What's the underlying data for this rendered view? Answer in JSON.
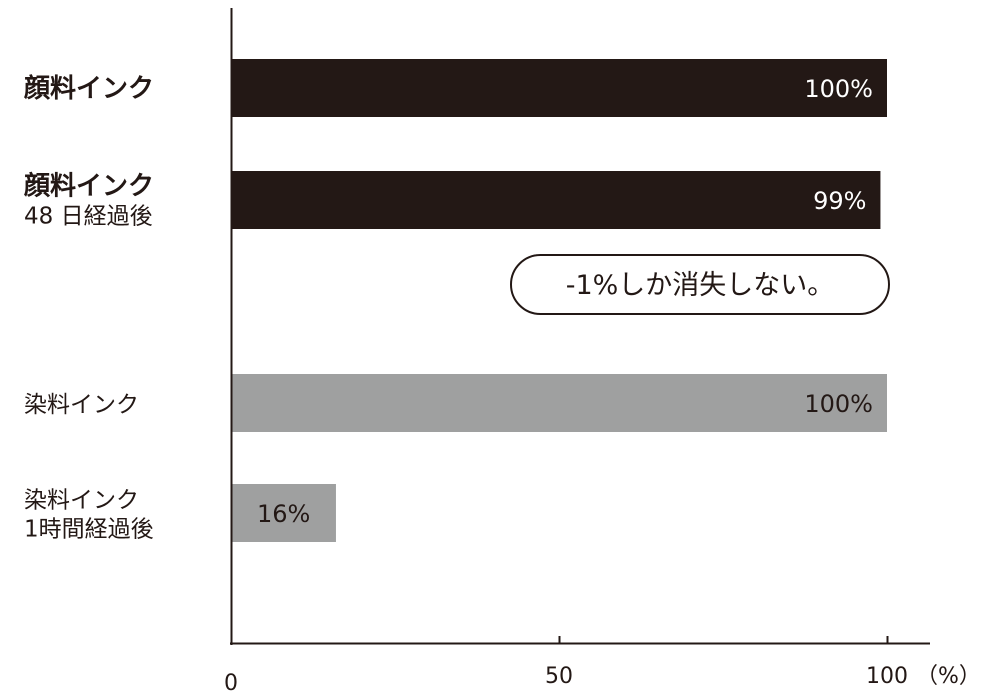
{
  "chart_data": {
    "type": "bar",
    "orientation": "horizontal",
    "categories": [
      [
        "顔料インク"
      ],
      [
        "顔料インク",
        "48 日経過後"
      ],
      [
        "染料インク"
      ],
      [
        "染料インク",
        "1時間経過後"
      ]
    ],
    "category_bold_first_line": [
      true,
      true,
      false,
      false
    ],
    "values": [
      100,
      99,
      100,
      16
    ],
    "value_labels": [
      "100%",
      "99%",
      "100%",
      "16%"
    ],
    "bar_colors": [
      "#231815",
      "#231815",
      "#9fa0a0",
      "#9fa0a0"
    ],
    "value_label_colors": [
      "#ffffff",
      "#ffffff",
      "#231815",
      "#231815"
    ],
    "xlim": [
      0,
      100
    ],
    "x_ticks": [
      0,
      50,
      100
    ],
    "x_tick_labels": [
      "0",
      "50",
      "100"
    ],
    "x_unit": "（%）",
    "annotation": "-1%しか消失しない。",
    "grid": false,
    "legend": "none"
  }
}
